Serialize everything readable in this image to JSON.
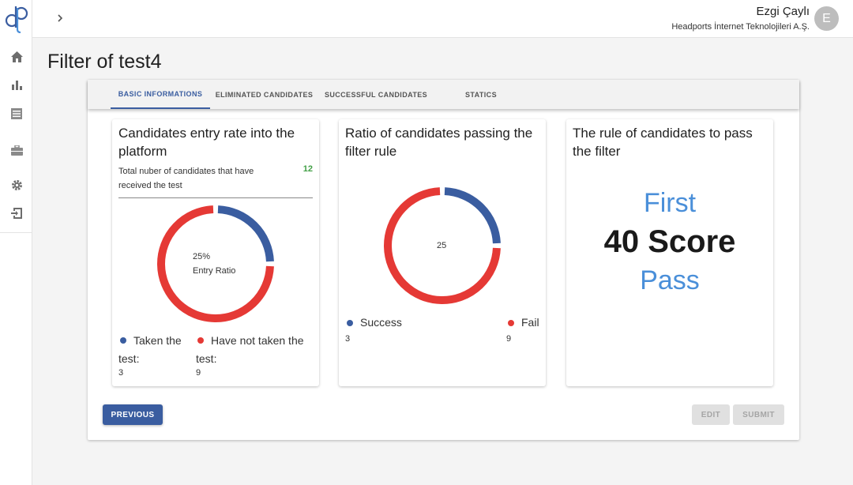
{
  "header": {
    "user_name": "Ezgi Çaylı",
    "company": "Headports İnternet Teknolojileri A.Ş.",
    "avatar_initial": "E"
  },
  "sidebar": {
    "items": [
      {
        "icon": "home-icon"
      },
      {
        "icon": "bar-chart-icon"
      },
      {
        "icon": "list-icon"
      },
      {
        "icon": "briefcase-icon"
      },
      {
        "icon": "gear-icon"
      },
      {
        "icon": "logout-icon"
      }
    ]
  },
  "page": {
    "title": "Filter of test4"
  },
  "tabs": [
    {
      "label": "BASIC INFORMATIONS",
      "active": true
    },
    {
      "label": "ELIMINATED CANDIDATES",
      "active": false
    },
    {
      "label": "SUCCESSFUL CANDIDATES",
      "active": false
    },
    {
      "label": "STATICS",
      "active": false
    }
  ],
  "cards": {
    "entry": {
      "title": "Candidates entry rate into the platform",
      "total_label": "Total nuber of candidates that have received the test",
      "total_value": "12",
      "center_percent": "25%",
      "center_label": "Entry Ratio",
      "ratio": 0.25,
      "legend": [
        {
          "label": "Taken the test:",
          "value": "3",
          "color": "#3a5da0"
        },
        {
          "label": "Have not taken the test:",
          "value": "9",
          "color": "#e53935"
        }
      ]
    },
    "passing": {
      "title": "Ratio of candidates passing the filter rule",
      "center_value": "25",
      "ratio": 0.25,
      "legend": [
        {
          "label": "Success",
          "value": "3",
          "color": "#3a5da0"
        },
        {
          "label": "Fail",
          "value": "9",
          "color": "#e53935"
        }
      ]
    },
    "rule": {
      "title": "The rule of candidates to pass the filter",
      "line1": "First",
      "line2": "40 Score",
      "line3": "Pass"
    }
  },
  "buttons": {
    "previous": "PREVIOUS",
    "edit": "EDIT",
    "submit": "SUBMIT"
  },
  "colors": {
    "primary": "#3a5da0",
    "fail": "#e53935",
    "success_count": "#43a047",
    "accent_text": "#4a8fd9"
  }
}
